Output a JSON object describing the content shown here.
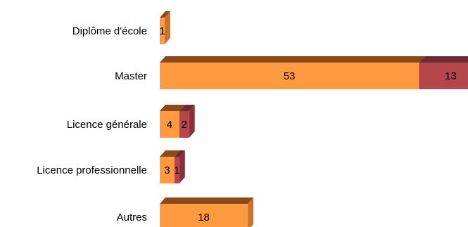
{
  "chart_data": {
    "type": "bar",
    "orientation": "horizontal",
    "stacked": true,
    "three_d": true,
    "categories": [
      "Diplôme d'école",
      "Master",
      "Licence générale",
      "Licence professionnelle",
      "Autres"
    ],
    "series": [
      {
        "values": [
          1,
          53,
          4,
          3,
          18
        ],
        "color": "#FF9A40"
      },
      {
        "values": [
          0,
          13,
          2,
          1,
          0
        ],
        "color": "#B5464B"
      }
    ],
    "value_labels": [
      [
        "1",
        "53",
        "4",
        "3",
        "18"
      ],
      [
        "",
        "13",
        "2",
        "1",
        ""
      ]
    ],
    "top_colors": [
      "#8A4A1A",
      "#6E2A33"
    ],
    "side_colors": [
      "#C8742A",
      "#8A3038"
    ],
    "legend": "none",
    "grid": false,
    "title": "",
    "xlabel": "",
    "ylabel": ""
  }
}
